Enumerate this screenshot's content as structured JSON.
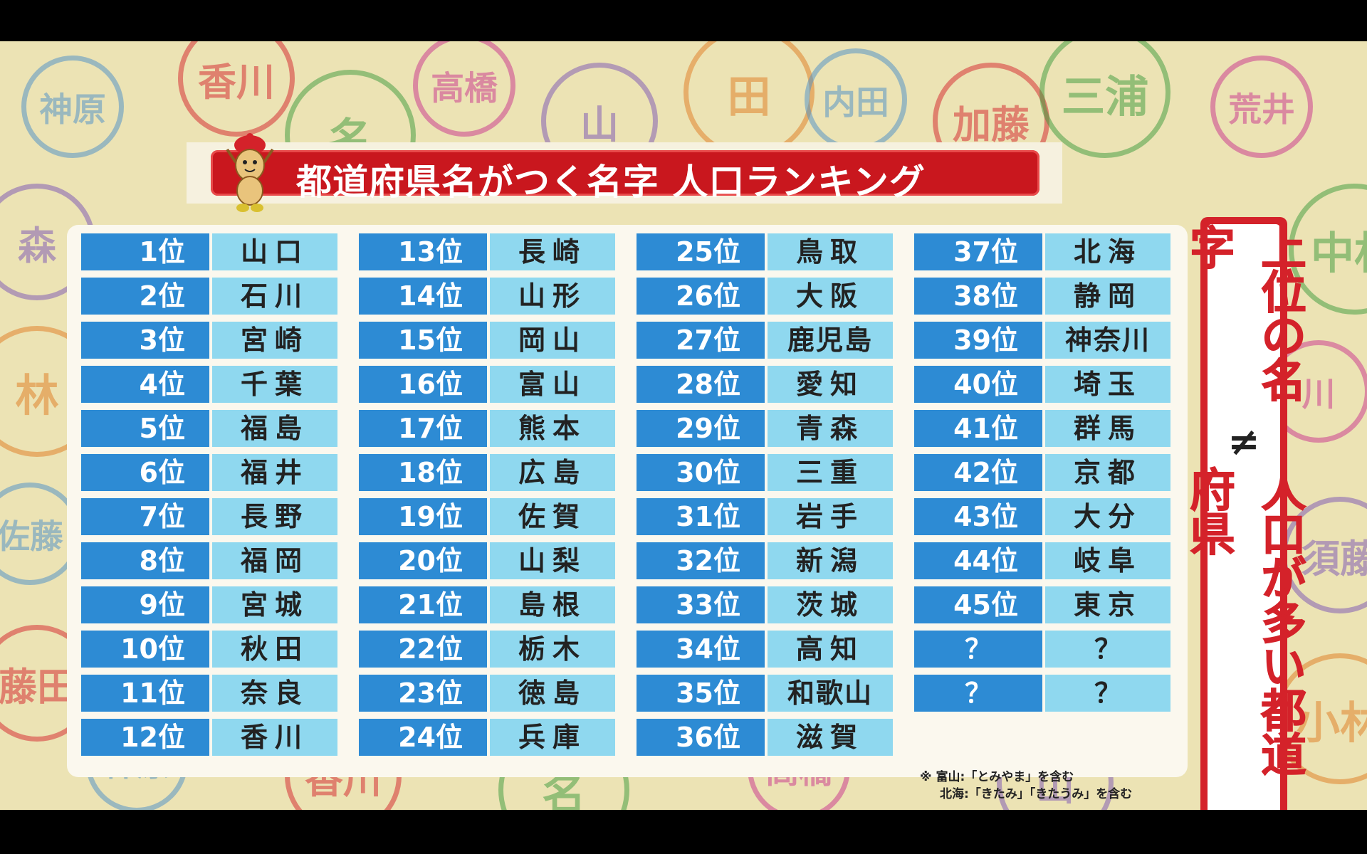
{
  "title": "都道府県名がつく名字 人口ランキング",
  "colors": {
    "title_red": "#c9171e",
    "rank_blue": "#2d8bd4",
    "name_blue": "#8fd8ef",
    "side_red": "#d4222a"
  },
  "mascot_icon": "peanut-mascot-icon",
  "ranking": [
    [
      {
        "rank": "1位",
        "name": "山口"
      },
      {
        "rank": "2位",
        "name": "石川"
      },
      {
        "rank": "3位",
        "name": "宮崎"
      },
      {
        "rank": "4位",
        "name": "千葉"
      },
      {
        "rank": "5位",
        "name": "福島"
      },
      {
        "rank": "6位",
        "name": "福井"
      },
      {
        "rank": "7位",
        "name": "長野"
      },
      {
        "rank": "8位",
        "name": "福岡"
      },
      {
        "rank": "9位",
        "name": "宮城"
      },
      {
        "rank": "10位",
        "name": "秋田"
      },
      {
        "rank": "11位",
        "name": "奈良"
      },
      {
        "rank": "12位",
        "name": "香川"
      }
    ],
    [
      {
        "rank": "13位",
        "name": "長崎"
      },
      {
        "rank": "14位",
        "name": "山形"
      },
      {
        "rank": "15位",
        "name": "岡山"
      },
      {
        "rank": "16位",
        "name": "富山"
      },
      {
        "rank": "17位",
        "name": "熊本"
      },
      {
        "rank": "18位",
        "name": "広島"
      },
      {
        "rank": "19位",
        "name": "佐賀"
      },
      {
        "rank": "20位",
        "name": "山梨"
      },
      {
        "rank": "21位",
        "name": "島根"
      },
      {
        "rank": "22位",
        "name": "栃木"
      },
      {
        "rank": "23位",
        "name": "徳島"
      },
      {
        "rank": "24位",
        "name": "兵庫"
      }
    ],
    [
      {
        "rank": "25位",
        "name": "鳥取"
      },
      {
        "rank": "26位",
        "name": "大阪"
      },
      {
        "rank": "27位",
        "name": "鹿児島"
      },
      {
        "rank": "28位",
        "name": "愛知"
      },
      {
        "rank": "29位",
        "name": "青森"
      },
      {
        "rank": "30位",
        "name": "三重"
      },
      {
        "rank": "31位",
        "name": "岩手"
      },
      {
        "rank": "32位",
        "name": "新潟"
      },
      {
        "rank": "33位",
        "name": "茨城"
      },
      {
        "rank": "34位",
        "name": "高知"
      },
      {
        "rank": "35位",
        "name": "和歌山"
      },
      {
        "rank": "36位",
        "name": "滋賀"
      }
    ],
    [
      {
        "rank": "37位",
        "name": "北海"
      },
      {
        "rank": "38位",
        "name": "静岡"
      },
      {
        "rank": "39位",
        "name": "神奈川"
      },
      {
        "rank": "40位",
        "name": "埼玉"
      },
      {
        "rank": "41位",
        "name": "群馬"
      },
      {
        "rank": "42位",
        "name": "京都"
      },
      {
        "rank": "43位",
        "name": "大分"
      },
      {
        "rank": "44位",
        "name": "岐阜"
      },
      {
        "rank": "45位",
        "name": "東京"
      },
      {
        "rank": "？",
        "name": "？"
      },
      {
        "rank": "？",
        "name": "？"
      }
    ]
  ],
  "note": {
    "line1": "※ 富山:「とみやま」を含む",
    "line2": "北海:「きたみ」「きたうみ」を含む"
  },
  "side": {
    "line1": "上位の名字",
    "symbol": "≠",
    "line2": "人口が多い都道府県"
  },
  "background_stamps": [
    "神原",
    "香川",
    "名",
    "高橋",
    "山",
    "田",
    "内田",
    "加藤",
    "三浦",
    "荒井",
    "森",
    "林",
    "佐藤",
    "藤田",
    "中村",
    "川",
    "須藤",
    "小林"
  ]
}
